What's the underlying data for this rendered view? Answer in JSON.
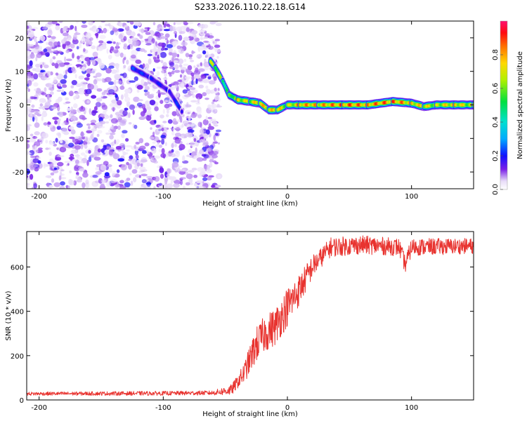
{
  "title": "S233.2026.110.22.18.G14",
  "chart_data": [
    {
      "type": "heatmap",
      "xlabel": "Height of straight line (km)",
      "ylabel": "Frequency (Hz)",
      "xlim": [
        -210,
        150
      ],
      "ylim": [
        -25,
        25
      ],
      "x_ticks": [
        -200,
        -100,
        0,
        100
      ],
      "y_ticks": [
        -20,
        -10,
        0,
        10,
        20
      ],
      "colorbar": {
        "label": "Normalized spectral amplitude",
        "range": [
          0.0,
          1.0
        ],
        "ticks": [
          "0.0",
          "0.2",
          "0.4",
          "0.6",
          "0.8"
        ],
        "tick_values": [
          0.0,
          0.2,
          0.4,
          0.6,
          0.8
        ]
      },
      "noise_region": {
        "x_from": -210,
        "x_to": -55,
        "y_from": -25,
        "y_to": 25,
        "level": 0.05
      },
      "ridge": [
        {
          "x": -125,
          "y": 11,
          "amp": 0.25
        },
        {
          "x": -110,
          "y": 8,
          "amp": 0.22
        },
        {
          "x": -95,
          "y": 4,
          "amp": 0.2
        },
        {
          "x": -85,
          "y": -2,
          "amp": 0.25
        },
        {
          "x": -62,
          "y": 13,
          "amp": 0.7
        },
        {
          "x": -58,
          "y": 11,
          "amp": 0.75
        },
        {
          "x": -52,
          "y": 7,
          "amp": 0.6
        },
        {
          "x": -47,
          "y": 3,
          "amp": 0.6
        },
        {
          "x": -40,
          "y": 1.5,
          "amp": 0.8
        },
        {
          "x": -30,
          "y": 1,
          "amp": 0.75
        },
        {
          "x": -22,
          "y": 0.5,
          "amp": 0.85
        },
        {
          "x": -15,
          "y": -1.5,
          "amp": 0.8
        },
        {
          "x": -8,
          "y": -1.5,
          "amp": 0.85
        },
        {
          "x": 0,
          "y": 0,
          "amp": 0.7
        },
        {
          "x": 10,
          "y": 0,
          "amp": 0.9
        },
        {
          "x": 25,
          "y": 0,
          "amp": 0.85
        },
        {
          "x": 45,
          "y": 0,
          "amp": 0.95
        },
        {
          "x": 65,
          "y": 0,
          "amp": 0.9
        },
        {
          "x": 85,
          "y": 1,
          "amp": 0.95
        },
        {
          "x": 100,
          "y": 0.5,
          "amp": 0.85
        },
        {
          "x": 110,
          "y": -0.5,
          "amp": 0.8
        },
        {
          "x": 120,
          "y": 0,
          "amp": 0.75
        },
        {
          "x": 135,
          "y": 0,
          "amp": 0.85
        },
        {
          "x": 150,
          "y": 0,
          "amp": 0.7
        }
      ]
    },
    {
      "type": "line",
      "xlabel": "Height of straight line (km)",
      "ylabel": "SNR (10 * v/v)",
      "xlim": [
        -210,
        150
      ],
      "ylim": [
        0,
        760
      ],
      "x_ticks": [
        -200,
        -100,
        0,
        100
      ],
      "y_ticks": [
        0,
        200,
        400,
        600
      ],
      "series": [
        {
          "name": "SNR",
          "color": "#e8332f",
          "trend": [
            {
              "x": -210,
              "y": 28
            },
            {
              "x": -100,
              "y": 30
            },
            {
              "x": -60,
              "y": 32
            },
            {
              "x": -45,
              "y": 45
            },
            {
              "x": -35,
              "y": 120
            },
            {
              "x": -25,
              "y": 250
            },
            {
              "x": -18,
              "y": 300
            },
            {
              "x": -10,
              "y": 330
            },
            {
              "x": 0,
              "y": 420
            },
            {
              "x": 10,
              "y": 500
            },
            {
              "x": 20,
              "y": 600
            },
            {
              "x": 35,
              "y": 690
            },
            {
              "x": 60,
              "y": 700
            },
            {
              "x": 90,
              "y": 690
            },
            {
              "x": 95,
              "y": 610
            },
            {
              "x": 100,
              "y": 690
            },
            {
              "x": 150,
              "y": 695
            }
          ],
          "noise": [
            {
              "x": -210,
              "amp": 8
            },
            {
              "x": -60,
              "amp": 10
            },
            {
              "x": -40,
              "amp": 30
            },
            {
              "x": -25,
              "amp": 80
            },
            {
              "x": 0,
              "amp": 90
            },
            {
              "x": 25,
              "amp": 45
            },
            {
              "x": 150,
              "amp": 35
            }
          ]
        }
      ]
    }
  ]
}
